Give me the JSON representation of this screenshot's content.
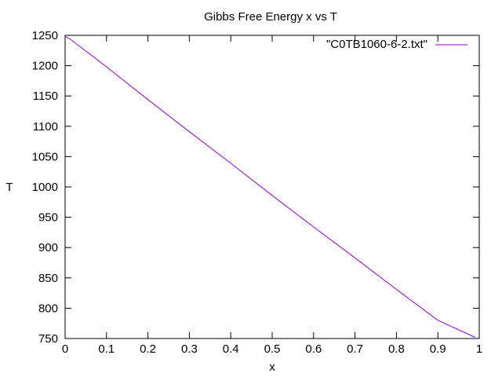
{
  "chart_data": {
    "type": "line",
    "title": "Gibbs Free Energy x vs T",
    "xlabel": "x",
    "ylabel": "T",
    "xlim": [
      0,
      1
    ],
    "ylim": [
      750,
      1250
    ],
    "grid": false,
    "legend_position": "top-right",
    "x_ticks": [
      "0",
      "0.1",
      "0.2",
      "0.3",
      "0.4",
      "0.5",
      "0.6",
      "0.7",
      "0.8",
      "0.9",
      "1"
    ],
    "y_ticks": [
      "750",
      "800",
      "850",
      "900",
      "950",
      "1000",
      "1050",
      "1100",
      "1150",
      "1200",
      "1250"
    ],
    "series": [
      {
        "name": "\"C0TB1060-6-2.txt\"",
        "color": "#9400d3",
        "x": [
          0,
          0.01,
          0.1,
          0.2,
          0.3,
          0.4,
          0.5,
          0.6,
          0.7,
          0.8,
          0.9,
          0.99
        ],
        "y": [
          1248,
          1245,
          1198,
          1144,
          1091,
          1039,
          986,
          934,
          883,
          831,
          780,
          752
        ]
      }
    ]
  }
}
